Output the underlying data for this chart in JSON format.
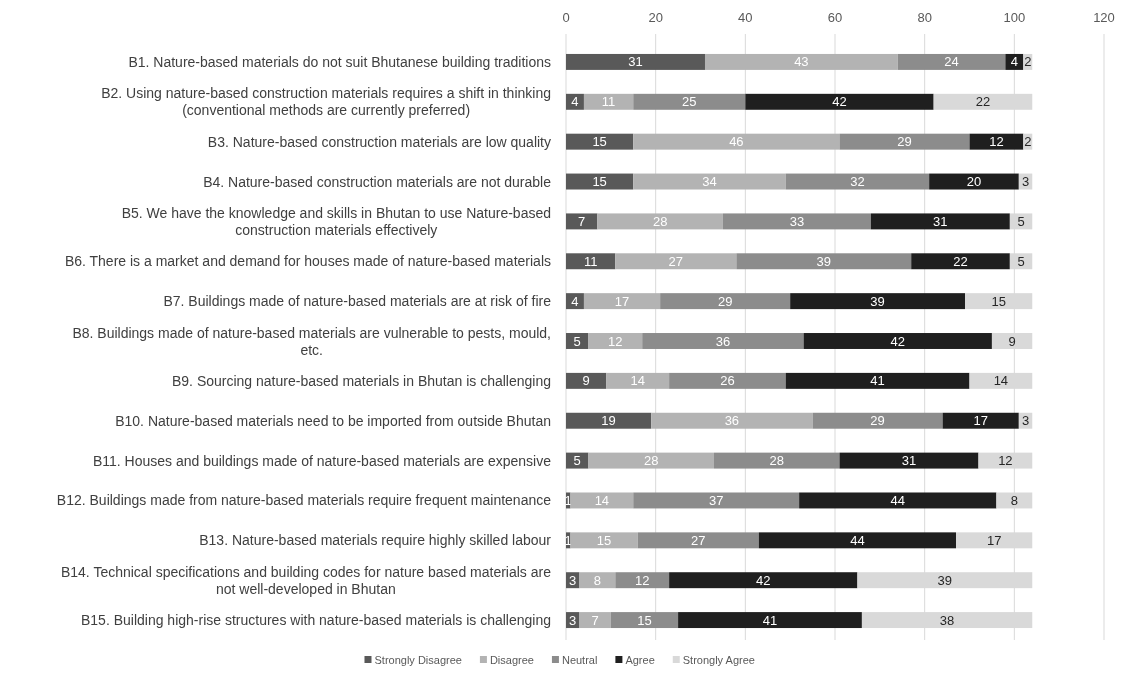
{
  "chart_data": {
    "type": "bar",
    "orientation": "horizontal",
    "stacked": true,
    "data_labels": true,
    "grid": "x",
    "legend": "bottom",
    "xlim": [
      0,
      120
    ],
    "xticks": [
      0,
      20,
      40,
      60,
      80,
      100,
      120
    ],
    "categories": [
      "B1. Nature-based materials do not suit Bhutanese building traditions",
      "B2. Using nature-based construction materials requires a shift in thinking (conventional methods are currently preferred)",
      "B3. Nature-based construction materials are low quality",
      "B4. Nature-based construction materials are not durable",
      "B5. We have the knowledge and skills in Bhutan to use Nature-based construction materials effectively",
      "B6. There is a market and demand for houses made of nature-based materials",
      "B7. Buildings made of nature-based materials are at risk of fire",
      "B8. Buildings made of nature-based materials are vulnerable to pests, mould, etc.",
      "B9. Sourcing nature-based materials in Bhutan is challenging",
      "B10. Nature-based materials need to be imported from outside Bhutan",
      "B11. Houses and buildings made of nature-based materials are expensive",
      "B12. Buildings made from nature-based materials require frequent maintenance",
      "B13. Nature-based materials require highly skilled labour",
      "B14. Technical specifications and building codes for nature based materials are not well-developed in Bhutan",
      "B15. Building high-rise structures with nature-based materials is challenging"
    ],
    "series": [
      {
        "name": "Strongly Disagree",
        "color": "#595959",
        "values": [
          31,
          4,
          15,
          15,
          7,
          11,
          4,
          5,
          9,
          19,
          5,
          1,
          1,
          3,
          3
        ]
      },
      {
        "name": "Disagree",
        "color": "#b3b3b3",
        "values": [
          43,
          11,
          46,
          34,
          28,
          27,
          17,
          12,
          14,
          36,
          28,
          14,
          15,
          8,
          7
        ]
      },
      {
        "name": "Neutral",
        "color": "#8c8c8c",
        "values": [
          24,
          25,
          29,
          32,
          33,
          39,
          29,
          36,
          26,
          29,
          28,
          37,
          27,
          12,
          15
        ]
      },
      {
        "name": "Agree",
        "color": "#1f1f1f",
        "values": [
          4,
          42,
          12,
          20,
          31,
          22,
          39,
          42,
          41,
          17,
          31,
          44,
          44,
          42,
          41
        ]
      },
      {
        "name": "Strongly Agree",
        "color": "#d9d9d9",
        "values": [
          2,
          22,
          2,
          3,
          5,
          5,
          15,
          9,
          14,
          3,
          12,
          8,
          17,
          39,
          38
        ]
      }
    ]
  }
}
